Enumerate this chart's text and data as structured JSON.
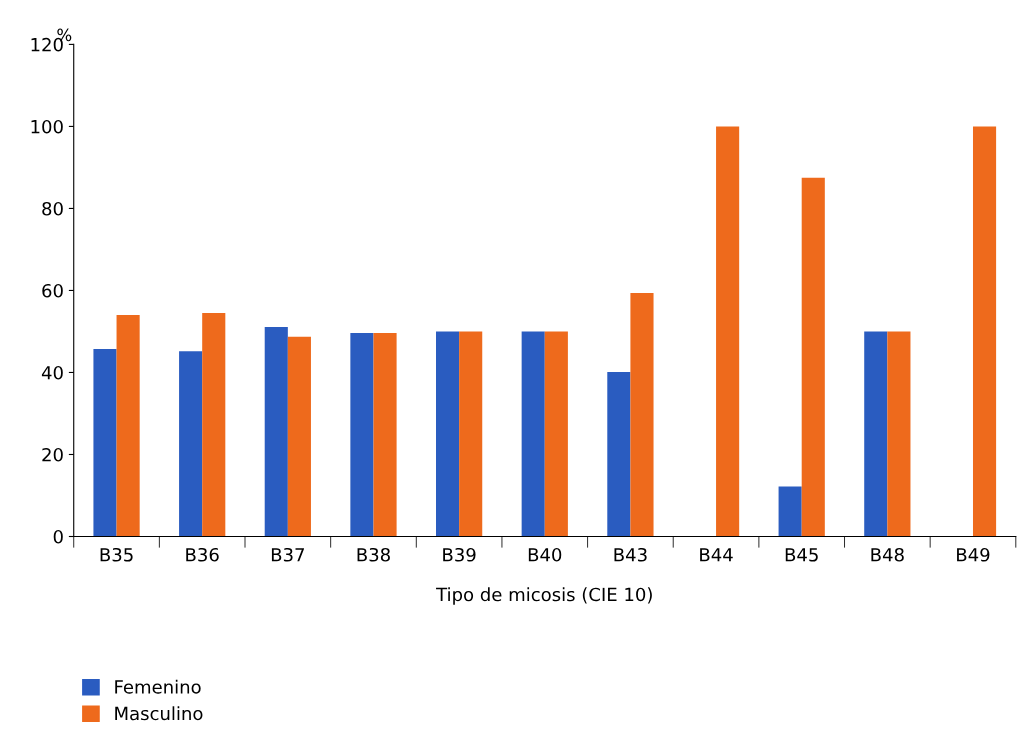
{
  "chart_data": {
    "type": "bar",
    "xlabel": "Tipo de micosis (CIE 10)",
    "ylabel": "%",
    "categories": [
      "B35",
      "B36",
      "B37",
      "B38",
      "B39",
      "B40",
      "B43",
      "B44",
      "B45",
      "B48",
      "B49"
    ],
    "series": [
      {
        "name": "Femenino",
        "color": "#2a5cc0",
        "values": [
          45.7,
          45.2,
          51.1,
          49.6,
          50,
          50,
          40.1,
          0,
          12.2,
          50,
          0
        ]
      },
      {
        "name": "Masculino",
        "color": "#ee6a1c",
        "values": [
          54.0,
          54.5,
          48.7,
          49.6,
          50,
          50,
          59.4,
          100,
          87.5,
          50,
          100
        ]
      }
    ],
    "ylim": [
      0,
      120
    ],
    "yticks": [
      0,
      20,
      40,
      60,
      80,
      100,
      120
    ],
    "grid": false,
    "legend": "bottom left"
  }
}
